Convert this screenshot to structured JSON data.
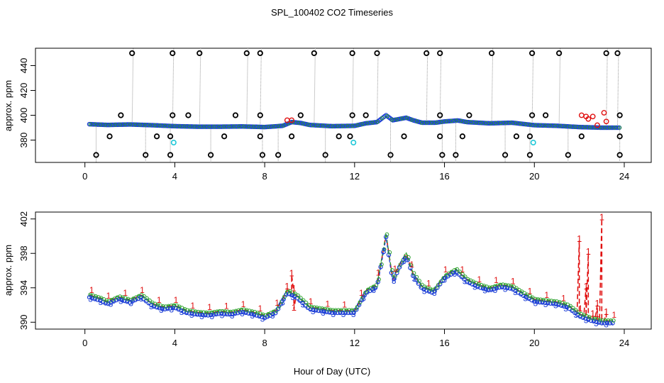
{
  "title": "SPL_100402  CO2 Timeseries",
  "xlabel": "Hour of Day (UTC)",
  "chart_data": [
    {
      "type": "scatter",
      "panel": "top",
      "ylabel": "approx. ppm",
      "xlim": [
        -2.2,
        25.2
      ],
      "ylim": [
        362,
        454
      ],
      "xticks": [
        0,
        4,
        8,
        12,
        16,
        20,
        24
      ],
      "yticks": [
        380,
        400,
        420,
        440
      ],
      "baseline_knots": [
        [
          0.2,
          392.8
        ],
        [
          1,
          392.2
        ],
        [
          2,
          392.6
        ],
        [
          3,
          392.0
        ],
        [
          4,
          391.2
        ],
        [
          5,
          390.8
        ],
        [
          6,
          390.8
        ],
        [
          7,
          391.0
        ],
        [
          8,
          390.5
        ],
        [
          8.8,
          391.5
        ],
        [
          9.2,
          394.5
        ],
        [
          9.6,
          393.8
        ],
        [
          10,
          392.2
        ],
        [
          11,
          391.2
        ],
        [
          12,
          391.5
        ],
        [
          12.5,
          393.5
        ],
        [
          13,
          394.5
        ],
        [
          13.4,
          400
        ],
        [
          13.7,
          396
        ],
        [
          14,
          397
        ],
        [
          14.3,
          398
        ],
        [
          14.6,
          396
        ],
        [
          15,
          394
        ],
        [
          15.6,
          394
        ],
        [
          16,
          395
        ],
        [
          16.6,
          395.8
        ],
        [
          17,
          394.5
        ],
        [
          18,
          393.5
        ],
        [
          19,
          394
        ],
        [
          19.6,
          392.8
        ],
        [
          20,
          392
        ],
        [
          21,
          391.5
        ],
        [
          22,
          390.5
        ],
        [
          23,
          390
        ],
        [
          23.7,
          390
        ]
      ],
      "outliers_high": [
        2.1,
        3.9,
        5.1,
        7.2,
        7.8,
        10.2,
        11.9,
        13.0,
        15.2,
        15.8,
        18.1,
        19.9,
        21.1,
        23.2,
        23.7
      ],
      "outliers_low": [
        0.5,
        2.7,
        3.8,
        5.6,
        7.9,
        8.6,
        10.7,
        13.6,
        15.9,
        16.5,
        18.7,
        19.8,
        21.5,
        23.8
      ],
      "outliers_mid": [
        [
          1.6,
          400
        ],
        [
          4.6,
          400
        ],
        [
          6.7,
          400
        ],
        [
          9.6,
          400
        ],
        [
          12.5,
          400
        ],
        [
          17.1,
          400
        ],
        [
          20.5,
          400
        ],
        [
          1.1,
          383
        ],
        [
          3.2,
          383
        ],
        [
          6.2,
          383
        ],
        [
          9.2,
          383
        ],
        [
          11.3,
          383
        ],
        [
          14.2,
          383
        ],
        [
          16.8,
          383
        ],
        [
          19.2,
          383
        ],
        [
          22.1,
          383
        ],
        [
          3.8,
          383
        ],
        [
          7.8,
          383
        ],
        [
          11.8,
          383
        ],
        [
          15.8,
          383
        ],
        [
          19.8,
          383
        ],
        [
          23.8,
          383
        ],
        [
          3.9,
          400
        ],
        [
          7.8,
          400
        ],
        [
          11.9,
          400
        ],
        [
          15.8,
          400
        ],
        [
          19.9,
          400
        ],
        [
          23.8,
          400
        ]
      ],
      "cyan_points": [
        [
          3.95,
          378
        ],
        [
          11.95,
          378
        ],
        [
          19.95,
          378
        ]
      ],
      "red_points": [
        [
          22.1,
          400
        ],
        [
          22.3,
          399
        ],
        [
          22.4,
          397
        ],
        [
          22.6,
          399
        ],
        [
          22.8,
          392
        ],
        [
          23.1,
          402
        ],
        [
          23.2,
          395
        ],
        [
          9.0,
          396
        ],
        [
          9.2,
          396
        ]
      ]
    },
    {
      "type": "line",
      "panel": "bottom",
      "ylabel": "approx. ppm",
      "xlim": [
        -2.2,
        25.2
      ],
      "ylim": [
        389.2,
        402.8
      ],
      "xticks": [
        0,
        4,
        8,
        12,
        16,
        20,
        24
      ],
      "yticks": [
        390,
        394,
        398,
        402
      ],
      "baseline_knots": [
        [
          0.2,
          393
        ],
        [
          0.7,
          392.6
        ],
        [
          1,
          392.2
        ],
        [
          1.5,
          392.8
        ],
        [
          2,
          392.4
        ],
        [
          2.5,
          393
        ],
        [
          3,
          392
        ],
        [
          3.5,
          391.6
        ],
        [
          4,
          391.8
        ],
        [
          4.5,
          391.2
        ],
        [
          5,
          391
        ],
        [
          5.5,
          390.9
        ],
        [
          6,
          391.1
        ],
        [
          6.5,
          391
        ],
        [
          7,
          391.3
        ],
        [
          7.5,
          391
        ],
        [
          8,
          390.6
        ],
        [
          8.5,
          391.2
        ],
        [
          9,
          393.5
        ],
        [
          9.4,
          393
        ],
        [
          10,
          391.6
        ],
        [
          11,
          391.2
        ],
        [
          12,
          391.2
        ],
        [
          12.5,
          393.5
        ],
        [
          13,
          394.2
        ],
        [
          13.4,
          400
        ],
        [
          13.7,
          394.8
        ],
        [
          14,
          396.5
        ],
        [
          14.3,
          397.8
        ],
        [
          14.6,
          395.5
        ],
        [
          15,
          394
        ],
        [
          15.5,
          393.5
        ],
        [
          16,
          395.2
        ],
        [
          16.5,
          396
        ],
        [
          17,
          394.8
        ],
        [
          17.5,
          394.2
        ],
        [
          18,
          393.8
        ],
        [
          18.5,
          394.2
        ],
        [
          19,
          394
        ],
        [
          19.5,
          393.2
        ],
        [
          20,
          392.5
        ],
        [
          21,
          392.2
        ],
        [
          21.5,
          391.8
        ],
        [
          22,
          390.8
        ],
        [
          22.5,
          390.3
        ],
        [
          23,
          390
        ],
        [
          23.6,
          390
        ]
      ],
      "series_labels": [
        "1",
        "3"
      ],
      "series1_spikes": [
        [
          22,
          399.5
        ],
        [
          22.3,
          394
        ],
        [
          22.4,
          398
        ],
        [
          22.6,
          390.8
        ],
        [
          22.8,
          392
        ],
        [
          23.0,
          402
        ],
        [
          23.2,
          391
        ],
        [
          9.0,
          394
        ],
        [
          9.2,
          395.5
        ],
        [
          9.3,
          391.5
        ]
      ]
    }
  ]
}
